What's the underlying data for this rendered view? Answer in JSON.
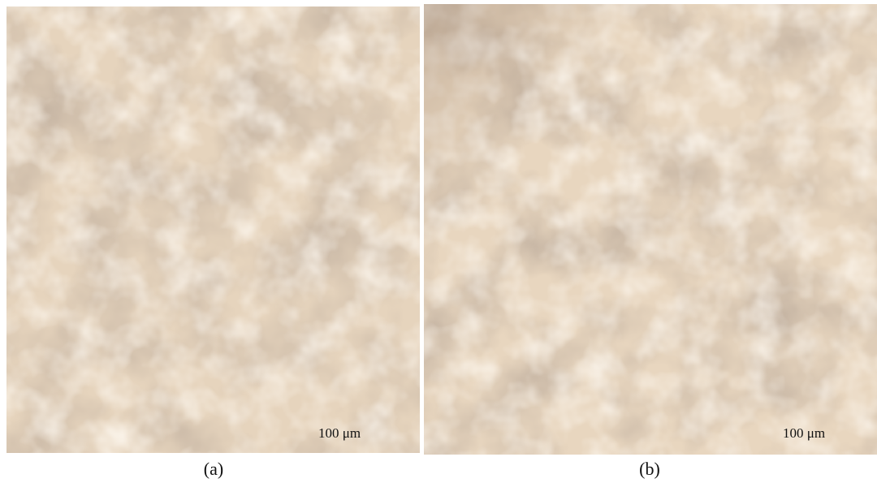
{
  "panels": [
    {
      "scale_label": "100 μm",
      "caption": "(a)"
    },
    {
      "scale_label": "100 μm",
      "caption": "(b)"
    }
  ]
}
